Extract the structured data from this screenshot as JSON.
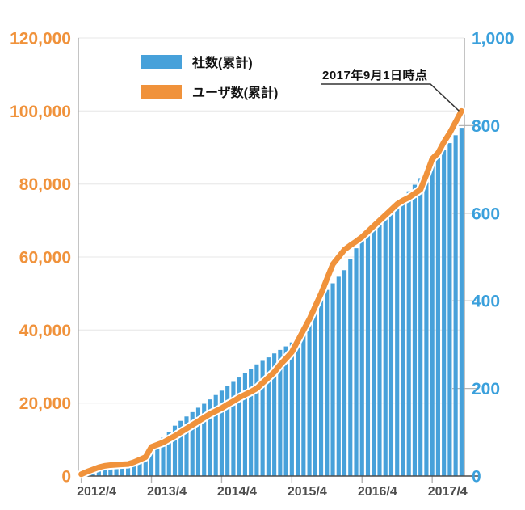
{
  "legend": {
    "companies_label": "社数(累計)",
    "users_label": "ユーザ数(累計)"
  },
  "annotation": {
    "text": "2017年9月1日時点"
  },
  "colors": {
    "bar_blue": "#47A1DA",
    "line_orange": "#F0923B",
    "left_axis_label": "#F0923B",
    "right_axis_label": "#3AA0DC",
    "x_axis_label": "#4d4d4d",
    "gridline": "#ececec",
    "axis_line": "#ababab",
    "bottom_axis_line": "#4d4d4d",
    "tick": "#b5b5b5",
    "leader_line": "#333333"
  },
  "chart_data": {
    "type": "combo-bar-line",
    "title": "",
    "categories": [
      "2012/4",
      "2012/5",
      "2012/6",
      "2012/7",
      "2012/8",
      "2012/9",
      "2012/10",
      "2012/11",
      "2012/12",
      "2013/1",
      "2013/2",
      "2013/3",
      "2013/4",
      "2013/5",
      "2013/6",
      "2013/7",
      "2013/8",
      "2013/9",
      "2013/10",
      "2013/11",
      "2013/12",
      "2014/1",
      "2014/2",
      "2014/3",
      "2014/4",
      "2014/5",
      "2014/6",
      "2014/7",
      "2014/8",
      "2014/9",
      "2014/10",
      "2014/11",
      "2014/12",
      "2015/1",
      "2015/2",
      "2015/3",
      "2015/4",
      "2015/5",
      "2015/6",
      "2015/7",
      "2015/8",
      "2015/9",
      "2015/10",
      "2015/11",
      "2015/12",
      "2016/1",
      "2016/2",
      "2016/3",
      "2016/4",
      "2016/5",
      "2016/6",
      "2016/7",
      "2016/8",
      "2016/9",
      "2016/10",
      "2016/11",
      "2016/12",
      "2017/1",
      "2017/2",
      "2017/3",
      "2017/4",
      "2017/5",
      "2017/6",
      "2017/7",
      "2017/8",
      "2017/9"
    ],
    "series": [
      {
        "name": "社数(累計)",
        "type": "bar",
        "axis": "right",
        "color": "#47A1DA",
        "values": [
          5,
          8,
          12,
          16,
          20,
          23,
          26,
          29,
          32,
          38,
          44,
          52,
          65,
          76,
          88,
          100,
          115,
          126,
          136,
          146,
          156,
          165,
          175,
          185,
          195,
          205,
          215,
          225,
          235,
          245,
          255,
          263,
          271,
          280,
          288,
          296,
          305,
          325,
          345,
          365,
          388,
          410,
          425,
          440,
          455,
          470,
          495,
          520,
          545,
          560,
          575,
          590,
          600,
          610,
          620,
          635,
          650,
          665,
          680,
          695,
          710,
          727,
          744,
          760,
          778,
          795
        ]
      },
      {
        "name": "ユーザ数(累計)",
        "type": "line",
        "axis": "left",
        "color": "#F0923B",
        "values": [
          500,
          1200,
          1800,
          2400,
          2800,
          3000,
          3100,
          3200,
          3300,
          3800,
          4500,
          5200,
          8000,
          8600,
          9200,
          10100,
          11000,
          12000,
          13000,
          14000,
          15000,
          16000,
          17000,
          17800,
          18600,
          19600,
          20500,
          21500,
          22300,
          23100,
          24000,
          25500,
          27000,
          28500,
          30500,
          32200,
          34000,
          37000,
          40000,
          43000,
          46500,
          50000,
          54000,
          58000,
          60000,
          62000,
          63200,
          64300,
          65500,
          67000,
          68500,
          70000,
          71500,
          73000,
          74500,
          75500,
          76300,
          77400,
          78500,
          82500,
          86900,
          88500,
          91500,
          94000,
          97000,
          100000
        ]
      }
    ],
    "left_axis": {
      "min": 0,
      "max": 120000,
      "tick_step": 20000,
      "tick_labels": [
        "0",
        "20,000",
        "40,000",
        "60,000",
        "80,000",
        "100,000",
        "120,000"
      ]
    },
    "right_axis": {
      "min": 0,
      "max": 1000,
      "tick_step": 200,
      "tick_labels": [
        "0",
        "200",
        "400",
        "600",
        "800",
        "1,000"
      ]
    },
    "x_axis": {
      "tick_labels": [
        "2012/4",
        "2013/4",
        "2014/4",
        "2015/4",
        "2016/4",
        "2017/4"
      ],
      "ticks_every_months": 12
    },
    "grid": true,
    "legend_position": "top-left-inside",
    "annotation": {
      "text": "2017年9月1日時点",
      "points_to_category": "2017/9",
      "points_to_series": "ユーザ数(累計)"
    }
  }
}
